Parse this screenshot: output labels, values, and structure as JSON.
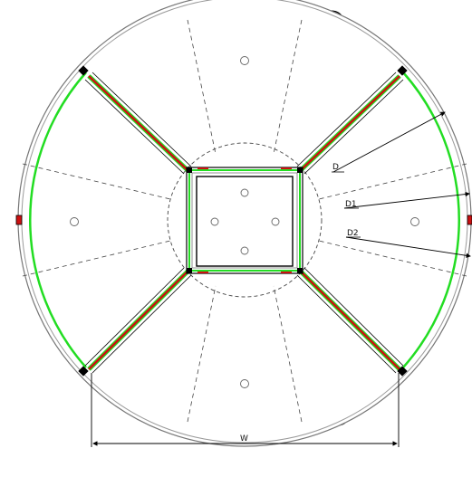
{
  "labels": {
    "d": "D",
    "d1": "D1",
    "d2": "D2",
    "w": "W"
  },
  "colors": {
    "line": "#000000",
    "rim": "#777777",
    "green": "#22dd22",
    "red": "#cc1111",
    "dash": "#444444",
    "background": "#ffffff"
  },
  "parts": {
    "outer-circle": "outer-circle",
    "inner-dashed-circle": "inner-dashed-circle",
    "center-square": "center-square",
    "radial-arms": [
      "arm-upper-left",
      "arm-upper-right",
      "arm-lower-left",
      "arm-lower-right"
    ],
    "feet": 4,
    "mount-holes": 8
  }
}
